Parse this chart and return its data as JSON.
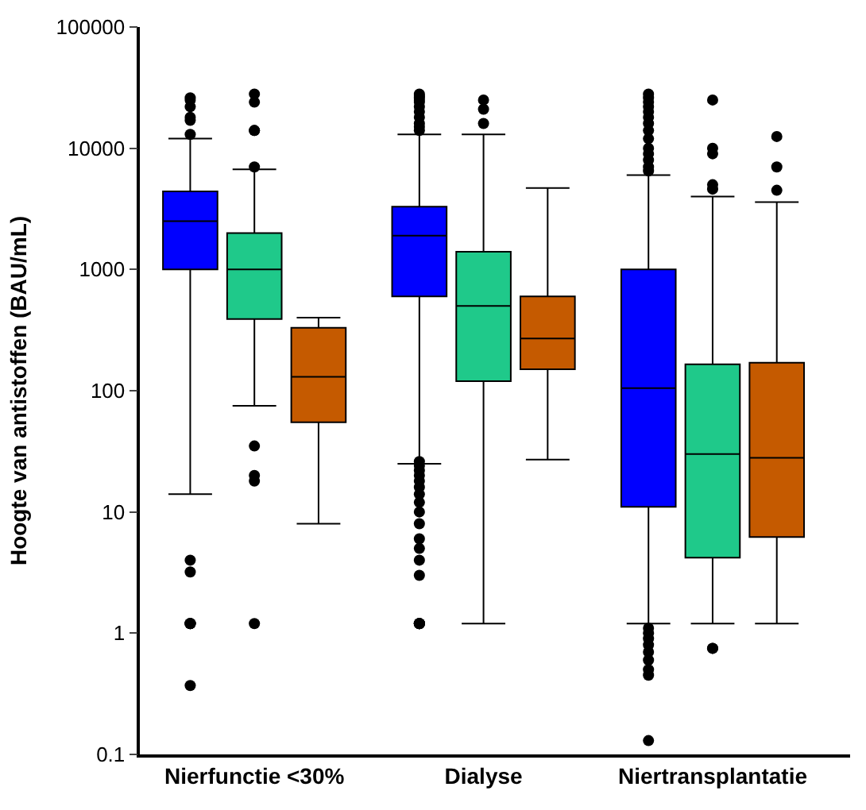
{
  "chart_data": {
    "type": "box",
    "ylabel": "Hoogte van antistoffen (BAU/mL)",
    "categories": [
      "Nierfunctie <30%",
      "Dialyse",
      "Niertransplantatie"
    ],
    "series": [
      {
        "color": "#0000ff",
        "boxes": [
          {
            "low": 14,
            "q1": 1000,
            "median": 2500,
            "q3": 4400,
            "high": 12000,
            "outliers": [
              26000,
              25000,
              22000,
              18000,
              17000,
              13000,
              4,
              3.2,
              1.2,
              1.2,
              1.2,
              1.2,
              0.37
            ]
          },
          {
            "low": 25,
            "q1": 600,
            "median": 1900,
            "q3": 3300,
            "high": 13000,
            "outliers": [
              28000,
              27000,
              26000,
              25000,
              24000,
              22000,
              20000,
              18000,
              16000,
              15000,
              14000,
              26,
              24,
              22,
              20,
              18,
              16,
              14,
              12,
              10,
              8,
              6,
              5,
              4,
              3,
              1.2,
              1.2,
              1.2,
              1.2,
              1.2
            ]
          },
          {
            "low": 1.2,
            "q1": 11,
            "median": 105,
            "q3": 1000,
            "high": 6000,
            "outliers": [
              28000,
              26000,
              24000,
              22000,
              20000,
              18000,
              16000,
              14000,
              12000,
              10000,
              9000,
              8000,
              7000,
              6500,
              1.1,
              1.0,
              0.9,
              0.8,
              0.7,
              0.6,
              0.5,
              0.45,
              0.13
            ]
          }
        ]
      },
      {
        "color": "#1fc98a",
        "boxes": [
          {
            "low": 75,
            "q1": 390,
            "median": 1000,
            "q3": 2000,
            "high": 6700,
            "outliers": [
              28000,
              24000,
              14000,
              14000,
              7000,
              35,
              20,
              18,
              1.2
            ]
          },
          {
            "low": 1.2,
            "q1": 120,
            "median": 500,
            "q3": 1400,
            "high": 13000,
            "outliers": [
              25000,
              21000,
              16000
            ]
          },
          {
            "low": 1.2,
            "q1": 4.2,
            "median": 30,
            "q3": 165,
            "high": 4000,
            "outliers": [
              25000,
              10000,
              9000,
              5000,
              4600,
              0.75,
              0.75
            ]
          }
        ]
      },
      {
        "color": "#c55a00",
        "boxes": [
          {
            "low": 8,
            "q1": 55,
            "median": 130,
            "q3": 330,
            "high": 400
          },
          {
            "low": 27,
            "q1": 150,
            "median": 270,
            "q3": 600,
            "high": 4700
          },
          {
            "low": 1.2,
            "q1": 6.2,
            "median": 28,
            "q3": 170,
            "high": 3600,
            "outliers": [
              12500,
              7000,
              4500
            ]
          }
        ]
      }
    ],
    "ylim": [
      0.1,
      100000
    ],
    "yticks": [
      0.1,
      1,
      10,
      100,
      1000,
      10000,
      100000
    ],
    "log": "y",
    "marker": "circle"
  }
}
